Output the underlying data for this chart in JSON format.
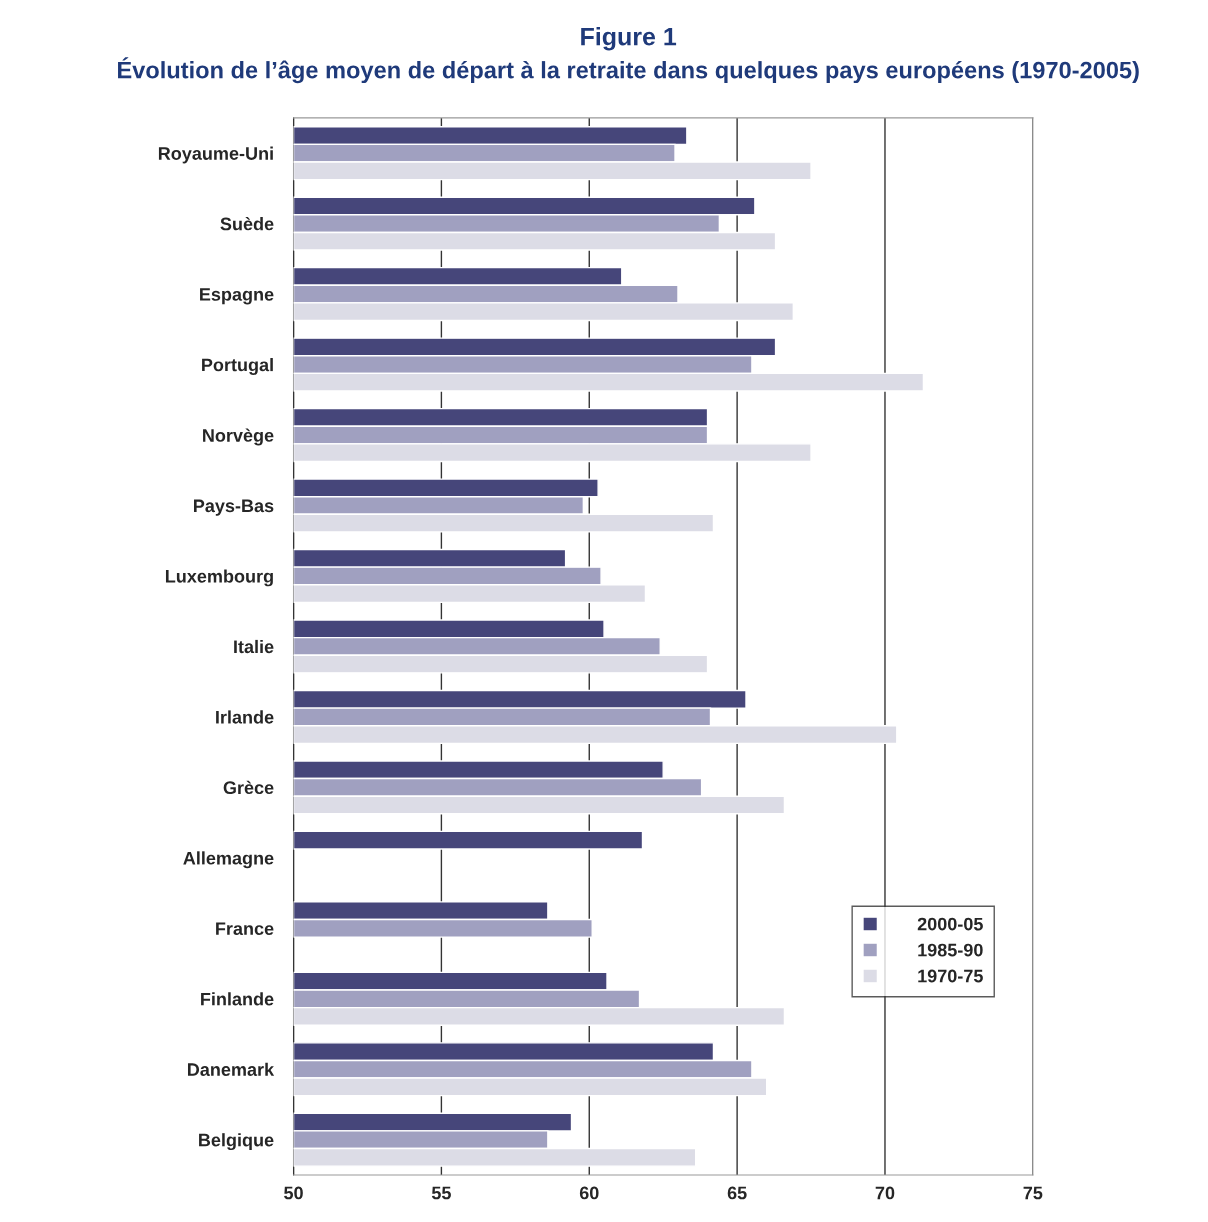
{
  "chart_data": {
    "type": "bar",
    "orientation": "horizontal",
    "title": "Figure 1",
    "subtitle": "Évolution de l’âge moyen de départ à la retraite dans quelques pays européens (1970-2005)",
    "categories": [
      "Royaume-Uni",
      "Suède",
      "Espagne",
      "Portugal",
      "Norvège",
      "Pays-Bas",
      "Luxembourg",
      "Italie",
      "Irlande",
      "Grèce",
      "Allemagne",
      "France",
      "Finlande",
      "Danemark",
      "Belgique"
    ],
    "series": [
      {
        "name": "2000-05",
        "color": "#46467a",
        "values": [
          63.3,
          65.6,
          61.1,
          66.3,
          64.0,
          60.3,
          59.2,
          60.5,
          65.3,
          62.5,
          61.8,
          58.6,
          60.6,
          64.2,
          59.4
        ]
      },
      {
        "name": "1985-90",
        "color": "#a0a0c0",
        "values": [
          62.9,
          64.4,
          63.0,
          65.5,
          64.0,
          59.8,
          60.4,
          62.4,
          64.1,
          63.8,
          null,
          60.1,
          61.7,
          65.5,
          58.6
        ]
      },
      {
        "name": "1970-75",
        "color": "#dcdce6",
        "values": [
          67.5,
          66.3,
          66.9,
          71.3,
          67.5,
          64.2,
          61.9,
          64.0,
          70.4,
          66.6,
          null,
          null,
          66.6,
          66.0,
          63.6
        ]
      }
    ],
    "xlim": [
      50,
      75
    ],
    "xticks": [
      50,
      55,
      60,
      65,
      70,
      75
    ],
    "grid": "x",
    "legend": "lower right"
  }
}
